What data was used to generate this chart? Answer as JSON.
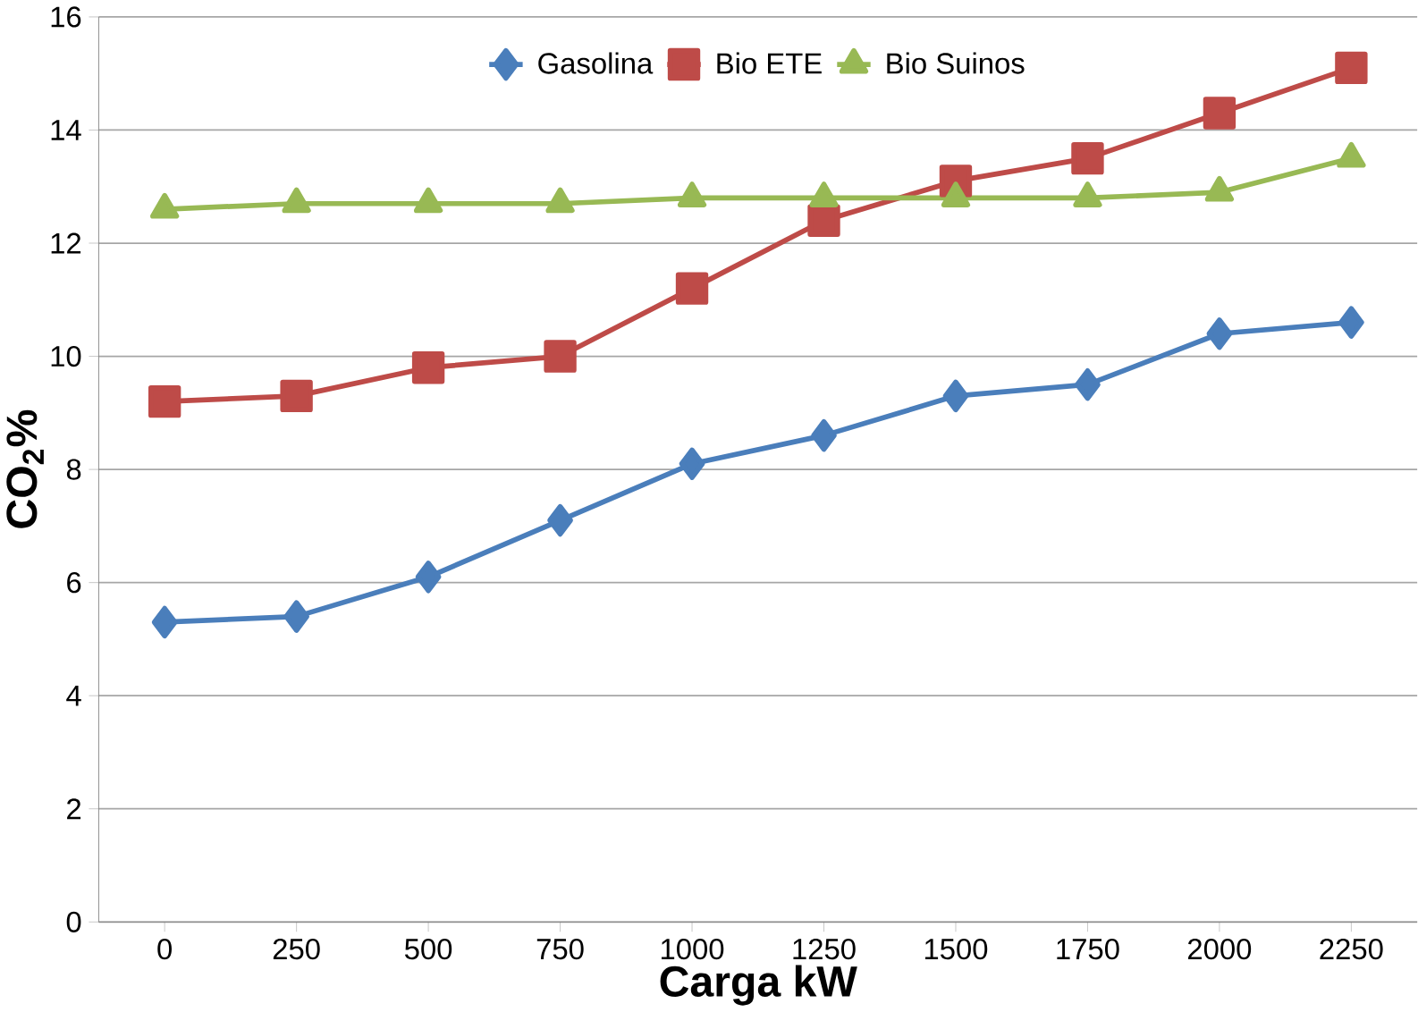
{
  "chart_data": {
    "type": "line",
    "xlabel": "Carga kW",
    "ylabel": "CO$_{2}$%",
    "categories": [
      "0",
      "250",
      "500",
      "750",
      "1000",
      "1250",
      "1500",
      "1750",
      "2000",
      "2250"
    ],
    "series": [
      {
        "name": "Gasolina",
        "color": "#4a7ebb",
        "marker": "diamond",
        "values": [
          5.3,
          5.4,
          6.1,
          7.1,
          8.1,
          8.6,
          9.3,
          9.5,
          10.4,
          10.6
        ]
      },
      {
        "name": "Bio ETE",
        "color": "#be4b48",
        "marker": "square",
        "values": [
          9.2,
          9.3,
          9.8,
          10.0,
          11.2,
          12.4,
          13.1,
          13.5,
          14.3,
          15.1
        ]
      },
      {
        "name": "Bio Suinos",
        "color": "#98b954",
        "marker": "triangle",
        "values": [
          12.6,
          12.7,
          12.7,
          12.7,
          12.8,
          12.8,
          12.8,
          12.8,
          12.9,
          13.5
        ]
      }
    ],
    "ylim": [
      0,
      16
    ],
    "yticks": [
      0,
      2,
      4,
      6,
      8,
      10,
      12,
      14,
      16
    ],
    "grid": "y",
    "legend": "top",
    "line_style": "solid"
  }
}
